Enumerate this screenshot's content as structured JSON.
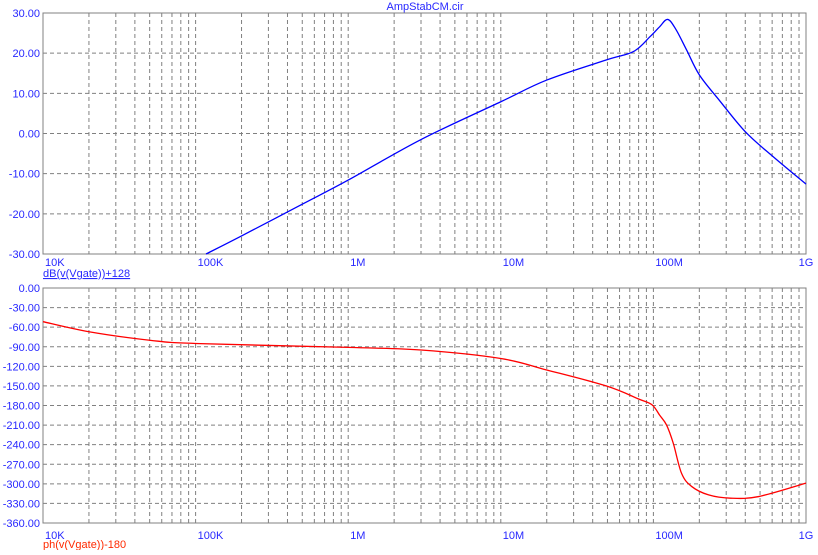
{
  "chart_data": [
    {
      "type": "line",
      "title": "AmpStabCM.cir",
      "xscale": "log",
      "xlim": [
        10000,
        1000000000
      ],
      "ylim": [
        -30,
        30
      ],
      "x_tick_labels": [
        "10K",
        "100K",
        "1M",
        "10M",
        "100M",
        "1G"
      ],
      "y_tick_labels": [
        "30.00",
        "20.00",
        "10.00",
        "0.00",
        "-10.00",
        "-20.00",
        "-30.00"
      ],
      "y_ticks": [
        30,
        20,
        10,
        0,
        -10,
        -20,
        -30
      ],
      "grid": true,
      "series": [
        {
          "name": "dB(v(Vgate))+128",
          "color": "#0000ff",
          "x": [
            117000,
            200000,
            500000,
            1000000,
            3000000,
            10000000,
            20000000,
            49000000,
            74000000,
            95000000,
            110000000,
            124000000,
            140000000,
            165000000,
            200000000,
            270000000,
            400000000,
            610000000,
            1000000000
          ],
          "y": [
            -30,
            -25.5,
            -17.6,
            -11.6,
            -1.5,
            7.9,
            13.3,
            18.3,
            20.4,
            24.1,
            26.6,
            28.4,
            26.0,
            20.8,
            14.6,
            8.3,
            0.45,
            -5.8,
            -12.6
          ]
        }
      ]
    },
    {
      "type": "line",
      "xscale": "log",
      "xlim": [
        10000,
        1000000000
      ],
      "ylim": [
        -360,
        0
      ],
      "x_tick_labels": [
        "10K",
        "100K",
        "1M",
        "10M",
        "100M",
        "1G"
      ],
      "y_tick_labels": [
        "0.00",
        "-30.00",
        "-60.00",
        "-90.00",
        "-120.00",
        "-150.00",
        "-180.00",
        "-210.00",
        "-240.00",
        "-270.00",
        "-300.00",
        "-330.00",
        "-360.00"
      ],
      "y_ticks": [
        0,
        -30,
        -60,
        -90,
        -120,
        -150,
        -180,
        -210,
        -240,
        -270,
        -300,
        -330,
        -360
      ],
      "grid": true,
      "series": [
        {
          "name": "ph(v(Vgate))-180",
          "color": "#ff0000",
          "x": [
            10000,
            20000,
            50000,
            100000,
            1000000,
            3000000,
            10000000,
            20000000,
            49000000,
            80000000,
            98000000,
            110000000,
            122000000,
            135000000,
            153000000,
            178000000,
            230000000,
            320000000,
            490000000,
            1000000000
          ],
          "y": [
            -51.6,
            -67,
            -80,
            -85,
            -91,
            -95,
            -108,
            -125.6,
            -150,
            -170,
            -179,
            -195,
            -210,
            -238,
            -284,
            -304,
            -317,
            -322,
            -319.5,
            -299
          ]
        }
      ]
    }
  ],
  "colors": {
    "axis_text": "#2828ff",
    "grid": "#808080",
    "magnitude": "#0000ff",
    "phase": "#ff0000"
  }
}
